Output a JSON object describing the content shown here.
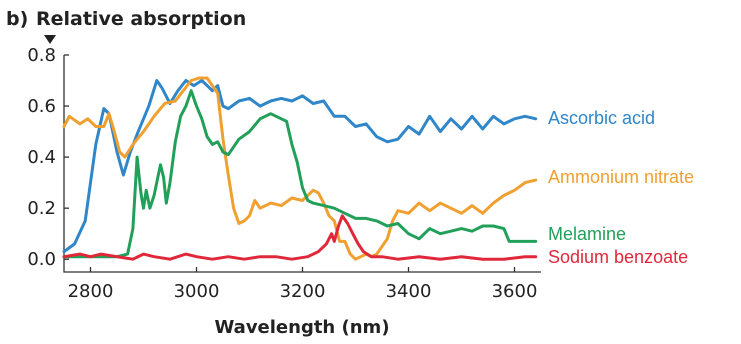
{
  "chart_data": {
    "type": "line",
    "panel_label": "b)",
    "title": "Relative absorption",
    "xlabel": "Wavelength (nm)",
    "ylabel": "",
    "xlim": [
      2750,
      3650
    ],
    "ylim": [
      -0.05,
      0.8
    ],
    "x_ticks": [
      2800,
      3000,
      3200,
      3400,
      3600
    ],
    "y_ticks": [
      0.0,
      0.2,
      0.4,
      0.6,
      0.8
    ],
    "y_tick_labels": [
      "0.0",
      "0.2",
      "0.4",
      "0.6",
      "0.8"
    ],
    "grid": false,
    "legend": "inline-right",
    "series": [
      {
        "name": "Ascorbic acid",
        "color": "#2f86c8",
        "points": [
          [
            2750,
            0.03
          ],
          [
            2770,
            0.06
          ],
          [
            2790,
            0.15
          ],
          [
            2810,
            0.45
          ],
          [
            2825,
            0.59
          ],
          [
            2835,
            0.57
          ],
          [
            2850,
            0.42
          ],
          [
            2862,
            0.33
          ],
          [
            2875,
            0.42
          ],
          [
            2890,
            0.5
          ],
          [
            2910,
            0.6
          ],
          [
            2925,
            0.7
          ],
          [
            2935,
            0.67
          ],
          [
            2950,
            0.61
          ],
          [
            2965,
            0.66
          ],
          [
            2980,
            0.7
          ],
          [
            2995,
            0.68
          ],
          [
            3010,
            0.7
          ],
          [
            3020,
            0.68
          ],
          [
            3030,
            0.66
          ],
          [
            3040,
            0.68
          ],
          [
            3050,
            0.6
          ],
          [
            3060,
            0.59
          ],
          [
            3080,
            0.62
          ],
          [
            3100,
            0.63
          ],
          [
            3120,
            0.6
          ],
          [
            3140,
            0.62
          ],
          [
            3160,
            0.63
          ],
          [
            3180,
            0.62
          ],
          [
            3200,
            0.64
          ],
          [
            3220,
            0.61
          ],
          [
            3240,
            0.62
          ],
          [
            3260,
            0.56
          ],
          [
            3280,
            0.56
          ],
          [
            3300,
            0.52
          ],
          [
            3320,
            0.53
          ],
          [
            3340,
            0.48
          ],
          [
            3360,
            0.46
          ],
          [
            3380,
            0.47
          ],
          [
            3400,
            0.52
          ],
          [
            3420,
            0.49
          ],
          [
            3440,
            0.56
          ],
          [
            3460,
            0.5
          ],
          [
            3480,
            0.55
          ],
          [
            3500,
            0.51
          ],
          [
            3520,
            0.56
          ],
          [
            3540,
            0.51
          ],
          [
            3560,
            0.56
          ],
          [
            3580,
            0.53
          ],
          [
            3600,
            0.55
          ],
          [
            3620,
            0.56
          ],
          [
            3640,
            0.55
          ]
        ]
      },
      {
        "name": "Ammonium nitrate",
        "color": "#f0a030",
        "points": [
          [
            2750,
            0.52
          ],
          [
            2760,
            0.56
          ],
          [
            2780,
            0.53
          ],
          [
            2795,
            0.55
          ],
          [
            2810,
            0.52
          ],
          [
            2825,
            0.52
          ],
          [
            2835,
            0.57
          ],
          [
            2845,
            0.5
          ],
          [
            2855,
            0.42
          ],
          [
            2865,
            0.4
          ],
          [
            2880,
            0.45
          ],
          [
            2900,
            0.5
          ],
          [
            2920,
            0.56
          ],
          [
            2940,
            0.61
          ],
          [
            2960,
            0.62
          ],
          [
            2975,
            0.66
          ],
          [
            2990,
            0.7
          ],
          [
            3005,
            0.71
          ],
          [
            3020,
            0.71
          ],
          [
            3030,
            0.68
          ],
          [
            3040,
            0.65
          ],
          [
            3050,
            0.47
          ],
          [
            3060,
            0.33
          ],
          [
            3070,
            0.2
          ],
          [
            3080,
            0.14
          ],
          [
            3090,
            0.15
          ],
          [
            3100,
            0.17
          ],
          [
            3110,
            0.23
          ],
          [
            3120,
            0.2
          ],
          [
            3140,
            0.22
          ],
          [
            3160,
            0.21
          ],
          [
            3180,
            0.24
          ],
          [
            3200,
            0.23
          ],
          [
            3220,
            0.27
          ],
          [
            3230,
            0.26
          ],
          [
            3240,
            0.22
          ],
          [
            3250,
            0.17
          ],
          [
            3260,
            0.15
          ],
          [
            3270,
            0.07
          ],
          [
            3280,
            0.07
          ],
          [
            3290,
            0.02
          ],
          [
            3300,
            0.0
          ],
          [
            3310,
            0.01
          ],
          [
            3320,
            0.02
          ],
          [
            3330,
            0.01
          ],
          [
            3340,
            0.02
          ],
          [
            3350,
            0.05
          ],
          [
            3360,
            0.08
          ],
          [
            3370,
            0.15
          ],
          [
            3380,
            0.19
          ],
          [
            3400,
            0.18
          ],
          [
            3420,
            0.22
          ],
          [
            3440,
            0.19
          ],
          [
            3460,
            0.22
          ],
          [
            3480,
            0.2
          ],
          [
            3500,
            0.18
          ],
          [
            3520,
            0.21
          ],
          [
            3540,
            0.18
          ],
          [
            3560,
            0.22
          ],
          [
            3580,
            0.25
          ],
          [
            3600,
            0.27
          ],
          [
            3620,
            0.3
          ],
          [
            3640,
            0.31
          ]
        ]
      },
      {
        "name": "Melamine",
        "color": "#22a05a",
        "points": [
          [
            2750,
            0.01
          ],
          [
            2800,
            0.01
          ],
          [
            2850,
            0.01
          ],
          [
            2870,
            0.02
          ],
          [
            2880,
            0.12
          ],
          [
            2888,
            0.4
          ],
          [
            2895,
            0.26
          ],
          [
            2900,
            0.2
          ],
          [
            2905,
            0.27
          ],
          [
            2912,
            0.2
          ],
          [
            2920,
            0.25
          ],
          [
            2928,
            0.33
          ],
          [
            2932,
            0.37
          ],
          [
            2938,
            0.32
          ],
          [
            2943,
            0.22
          ],
          [
            2950,
            0.3
          ],
          [
            2960,
            0.46
          ],
          [
            2970,
            0.56
          ],
          [
            2980,
            0.6
          ],
          [
            2990,
            0.66
          ],
          [
            3000,
            0.6
          ],
          [
            3010,
            0.55
          ],
          [
            3020,
            0.48
          ],
          [
            3030,
            0.45
          ],
          [
            3040,
            0.46
          ],
          [
            3050,
            0.42
          ],
          [
            3060,
            0.41
          ],
          [
            3080,
            0.47
          ],
          [
            3100,
            0.5
          ],
          [
            3120,
            0.55
          ],
          [
            3140,
            0.57
          ],
          [
            3160,
            0.55
          ],
          [
            3170,
            0.54
          ],
          [
            3180,
            0.45
          ],
          [
            3190,
            0.38
          ],
          [
            3200,
            0.28
          ],
          [
            3210,
            0.23
          ],
          [
            3220,
            0.22
          ],
          [
            3240,
            0.21
          ],
          [
            3260,
            0.2
          ],
          [
            3280,
            0.18
          ],
          [
            3300,
            0.16
          ],
          [
            3320,
            0.16
          ],
          [
            3340,
            0.15
          ],
          [
            3360,
            0.13
          ],
          [
            3380,
            0.14
          ],
          [
            3400,
            0.1
          ],
          [
            3420,
            0.08
          ],
          [
            3440,
            0.12
          ],
          [
            3460,
            0.1
          ],
          [
            3480,
            0.11
          ],
          [
            3500,
            0.12
          ],
          [
            3520,
            0.11
          ],
          [
            3540,
            0.13
          ],
          [
            3560,
            0.13
          ],
          [
            3580,
            0.12
          ],
          [
            3590,
            0.07
          ],
          [
            3610,
            0.07
          ],
          [
            3640,
            0.07
          ]
        ]
      },
      {
        "name": "Sodium benzoate",
        "color": "#e0283a",
        "points": [
          [
            2750,
            0.01
          ],
          [
            2780,
            0.02
          ],
          [
            2800,
            0.01
          ],
          [
            2820,
            0.02
          ],
          [
            2850,
            0.01
          ],
          [
            2880,
            0.0
          ],
          [
            2900,
            0.02
          ],
          [
            2920,
            0.01
          ],
          [
            2950,
            0.0
          ],
          [
            2980,
            0.02
          ],
          [
            3000,
            0.01
          ],
          [
            3030,
            0.0
          ],
          [
            3060,
            0.01
          ],
          [
            3090,
            0.0
          ],
          [
            3120,
            0.01
          ],
          [
            3150,
            0.01
          ],
          [
            3180,
            0.0
          ],
          [
            3210,
            0.01
          ],
          [
            3230,
            0.03
          ],
          [
            3245,
            0.06
          ],
          [
            3255,
            0.1
          ],
          [
            3260,
            0.07
          ],
          [
            3268,
            0.13
          ],
          [
            3275,
            0.17
          ],
          [
            3285,
            0.14
          ],
          [
            3295,
            0.1
          ],
          [
            3305,
            0.06
          ],
          [
            3315,
            0.03
          ],
          [
            3330,
            0.01
          ],
          [
            3350,
            0.01
          ],
          [
            3380,
            0.0
          ],
          [
            3420,
            0.01
          ],
          [
            3460,
            0.0
          ],
          [
            3500,
            0.01
          ],
          [
            3540,
            0.0
          ],
          [
            3580,
            0.0
          ],
          [
            3620,
            0.01
          ],
          [
            3640,
            0.01
          ]
        ]
      }
    ]
  }
}
